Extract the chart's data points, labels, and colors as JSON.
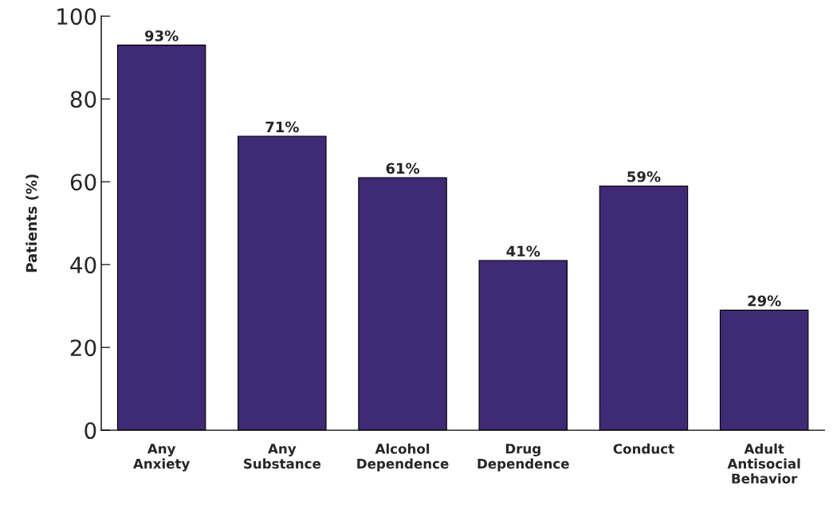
{
  "chart_data": {
    "type": "bar",
    "ylabel": "Patients (%)",
    "categories": [
      "Any\nAnxiety",
      "Any\nSubstance",
      "Alcohol\nDependence",
      "Drug\nDependence",
      "Conduct",
      "Adult\nAntisocial\nBehavior"
    ],
    "values": [
      93,
      71,
      61,
      41,
      59,
      29
    ],
    "value_labels": [
      "93%",
      "71%",
      "61%",
      "41%",
      "59%",
      "29%"
    ],
    "color": "#3f2a75",
    "ylim": [
      0,
      100
    ],
    "yticks": [
      0,
      20,
      40,
      60,
      80,
      100
    ],
    "grid": false
  }
}
